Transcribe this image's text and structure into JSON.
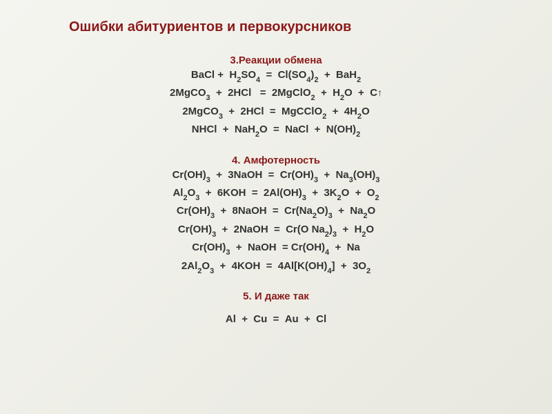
{
  "title": "Ошибки абитуриентов и первокурсников",
  "section3": {
    "header": "3.Реакции обмена",
    "equations": [
      "BaCl +  H₂SO₄  =  Cl(SO₄)₂  +  BaH₂",
      "2MgCO₃  +  2HCl   =  2MgClO₂  +  H₂O  +  C↑",
      "2MgCO₃  +  2HCl  =  MgCClO₂  +  4H₂O",
      "NHCl  +  NaH₂O  =  NaCl  +  N(OH)₂"
    ]
  },
  "section4": {
    "header": "4. Амфотерность",
    "equations": [
      "Cr(OH)₃  +  3NaOH  =  Cr(OH)₃  +  Na₃(OH)₃",
      "Al₂O₃  +  6KOH  =  2Al(OH)₃  +  3K₂O  +  O₂",
      "Cr(OH)₃  +  8NaOH  =  Cr(Na₂O)₃  +  Na₂O",
      "Cr(OH)₃  +  2NaOH  =  Cr(O Na₂)₃  +  H₂O",
      "Cr(OH)₃  +  NaOH  = Cr(OH)₄  +  Na",
      "2Al₂O₃  +  4KOH  =  4Al[K(OH)₄]  +  3O₂"
    ]
  },
  "section5": {
    "header": "5. И даже так",
    "equations": [
      "Al  +  Cu  =  Au  +  Cl"
    ]
  },
  "colors": {
    "title": "#8b1a1a",
    "header": "#8b1a1a",
    "text": "#333333",
    "background": "#f5f5f0"
  },
  "fonts": {
    "title_size": 20,
    "header_size": 15,
    "equation_size": 15
  }
}
